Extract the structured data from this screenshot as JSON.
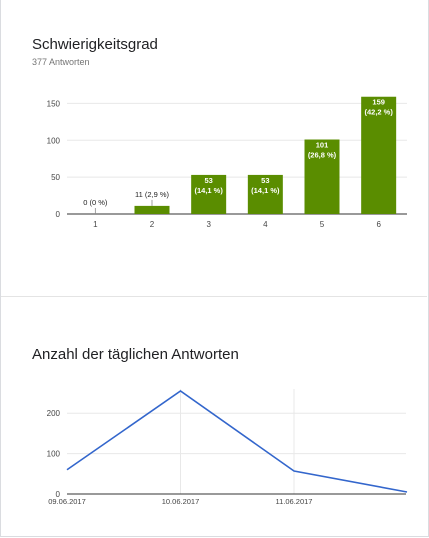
{
  "summary": {
    "title": "Schwierigkeitsgrad",
    "subtitle": "377 Antworten"
  },
  "daily": {
    "title": "Anzahl der täglichen Antworten"
  },
  "colors": {
    "bar": "#5a8d00",
    "line": "#3366cc",
    "grid": "#e8e8e8",
    "axis": "#333333"
  },
  "chart_data": [
    {
      "type": "bar",
      "categories": [
        "1",
        "2",
        "3",
        "4",
        "5",
        "6"
      ],
      "values": [
        0,
        11,
        53,
        53,
        101,
        159
      ],
      "labels": [
        [
          "0 (0 %)"
        ],
        [
          "11 (2,9 %)"
        ],
        [
          "53",
          "(14,1 %)"
        ],
        [
          "53",
          "(14,1 %)"
        ],
        [
          "101",
          "(26,8 %)"
        ],
        [
          "159",
          "(42,2 %)"
        ]
      ],
      "title": "Schwierigkeitsgrad",
      "subtitle": "377 Antworten",
      "yticks": [
        0,
        50,
        100,
        150
      ],
      "ylim": [
        0,
        160
      ],
      "grid": true
    },
    {
      "type": "line",
      "title": "Anzahl der täglichen Antworten",
      "x": [
        "09.06.2017",
        "10.06.2017",
        "11.06.2017",
        "12.06.2017"
      ],
      "xticks": [
        "09.06.2017",
        "10.06.2017",
        "11.06.2017"
      ],
      "values": [
        60,
        255,
        57,
        5
      ],
      "yticks": [
        0,
        100,
        200
      ],
      "ylim": [
        0,
        260
      ],
      "grid": true
    }
  ]
}
